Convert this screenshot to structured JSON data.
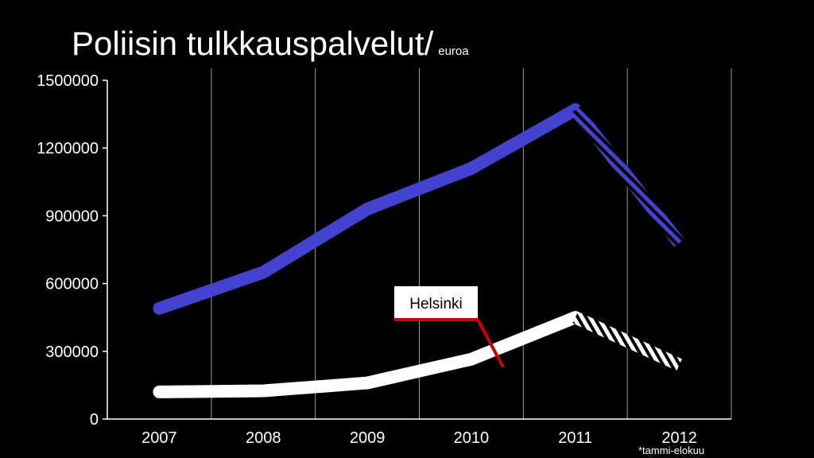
{
  "slide": {
    "title": "Poliisin tulkkauspalvelut/",
    "title_unit": "euroa",
    "footnote": "*tammi-elokuu"
  },
  "chart_data": {
    "type": "line",
    "title": "Poliisin tulkkauspalvelut/ euroa",
    "xlabel": "",
    "ylabel": "",
    "categories": [
      "2007",
      "2008",
      "2009",
      "2010",
      "2011",
      "2012"
    ],
    "ylim": [
      0,
      1500000
    ],
    "yticks": [
      0,
      300000,
      600000,
      900000,
      1200000,
      1500000
    ],
    "ytick_labels": [
      "0",
      "300000",
      "600000",
      "900000",
      "1200000",
      "1500000"
    ],
    "grid": "vertical",
    "series": [
      {
        "name": "",
        "color": "#4343d0",
        "values": [
          490000,
          650000,
          930000,
          1110000,
          1370000,
          780000
        ],
        "dashed_last_segment": true
      },
      {
        "name": "Helsinki",
        "color": "#ffffff",
        "values": [
          120000,
          125000,
          160000,
          265000,
          450000,
          240000
        ],
        "dashed_last_segment": true
      }
    ],
    "annotations": [
      {
        "text": "Helsinki",
        "target_series": "Helsinki",
        "target_category": "2010",
        "callout_color": "#cc0000"
      }
    ]
  }
}
